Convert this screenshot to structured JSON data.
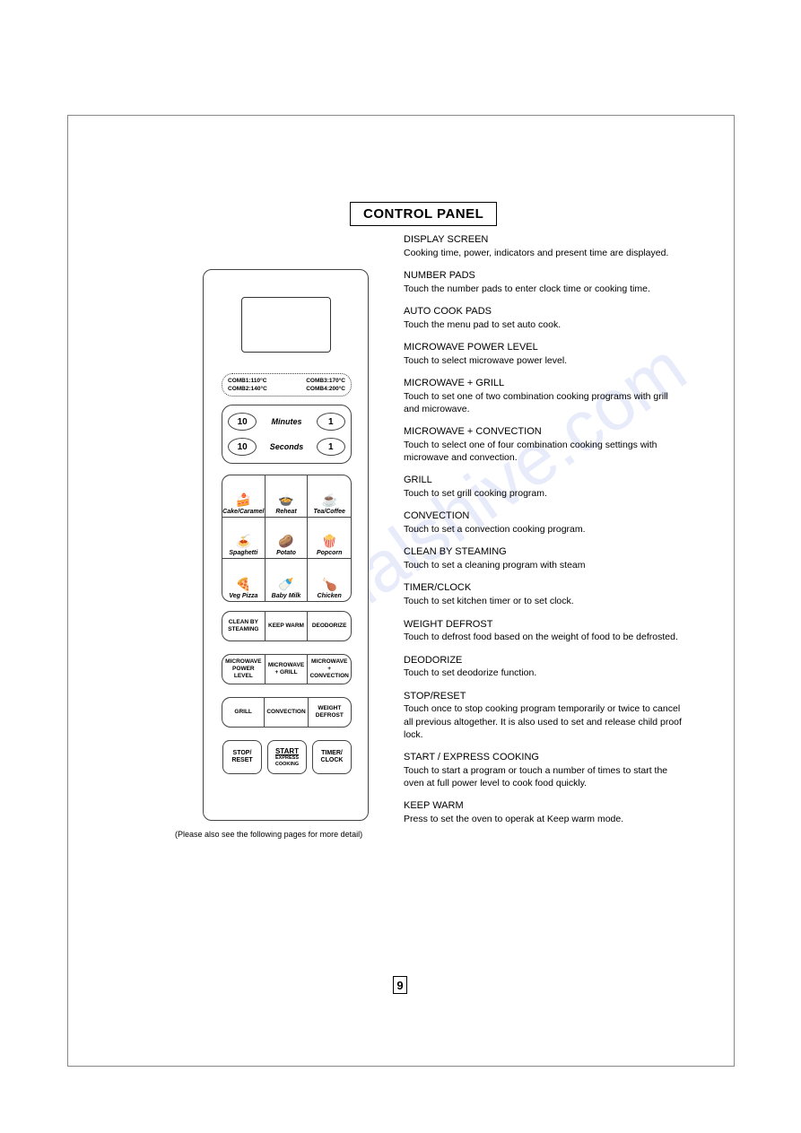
{
  "title": "CONTROL PANEL",
  "combo": {
    "left": [
      "COMB1:110°C",
      "COMB2:140°C"
    ],
    "right": [
      "COMB3:170°C",
      "COMB4:200°C"
    ]
  },
  "time": {
    "minutes_label": "Minutes",
    "seconds_label": "Seconds",
    "ten": "10",
    "one": "1"
  },
  "autocook": [
    {
      "label": "Cake/Caramel",
      "icon": "🍰"
    },
    {
      "label": "Reheat",
      "icon": "🍲"
    },
    {
      "label": "Tea/Coffee",
      "icon": "☕"
    },
    {
      "label": "Spaghetti",
      "icon": "🍝"
    },
    {
      "label": "Potato",
      "icon": "🥔"
    },
    {
      "label": "Popcorn",
      "icon": "🍿"
    },
    {
      "label": "Veg Pizza",
      "icon": "🍕"
    },
    {
      "label": "Baby Milk",
      "icon": "🍼"
    },
    {
      "label": "Chicken",
      "icon": "🍗"
    }
  ],
  "btn_row1": [
    "CLEAN BY STEAMING",
    "KEEP WARM",
    "DEODORIZE"
  ],
  "btn_row2": [
    "MICROWAVE POWER LEVEL",
    "MICROWAVE + GRILL",
    "MICROWAVE + CONVECTION"
  ],
  "btn_row3": [
    "GRILL",
    "CONVECTION",
    "WEIGHT DEFROST"
  ],
  "bottom": {
    "stop": "STOP/ RESET",
    "start_main": "START",
    "start_sub": "EXPRESS COOKING",
    "timer": "TIMER/ CLOCK"
  },
  "note": "(Please also see the following pages for more detail)",
  "descriptions": [
    {
      "title": "DISPLAY SCREEN",
      "text": "Cooking time, power, indicators and present time are displayed."
    },
    {
      "title": "NUMBER PADS",
      "text": "Touch the number pads to enter clock time or cooking time."
    },
    {
      "title": "AUTO COOK PADS",
      "text": "Touch the menu pad to set auto cook."
    },
    {
      "title": "MICROWAVE POWER LEVEL",
      "text": "Touch to select microwave power level."
    },
    {
      "title": "MICROWAVE + GRILL",
      "text": "Touch to set one of two combination cooking programs with grill and microwave."
    },
    {
      "title": "MICROWAVE + CONVECTION",
      "text": "Touch to select one of four combination cooking settings with microwave and convection."
    },
    {
      "title": "GRILL",
      "text": "Touch to set grill cooking program."
    },
    {
      "title": "CONVECTION",
      "text": "Touch to set a convection cooking program."
    },
    {
      "title": "CLEAN BY STEAMING",
      "text": "Touch to set a cleaning program with steam"
    },
    {
      "title": "TIMER/CLOCK",
      "text": "Touch to set kitchen timer or to set clock."
    },
    {
      "title": "WEIGHT DEFROST",
      "text": "Touch to defrost food based on the weight of food to be defrosted."
    },
    {
      "title": "DEODORIZE",
      "text": "Touch to set deodorize function."
    },
    {
      "title": "STOP/RESET",
      "text": "Touch once to stop cooking program temporarily or twice to cancel all previous altogether. It is also used to set and release child proof lock."
    },
    {
      "title": "START / EXPRESS COOKING",
      "text": "Touch to start a program or touch a number of times to start the oven at full power level to cook food quickly."
    },
    {
      "title": "KEEP WARM",
      "text": "Press to set the oven to operak at Keep warm mode."
    }
  ],
  "page_number": "9",
  "watermark": "manualshive.com"
}
